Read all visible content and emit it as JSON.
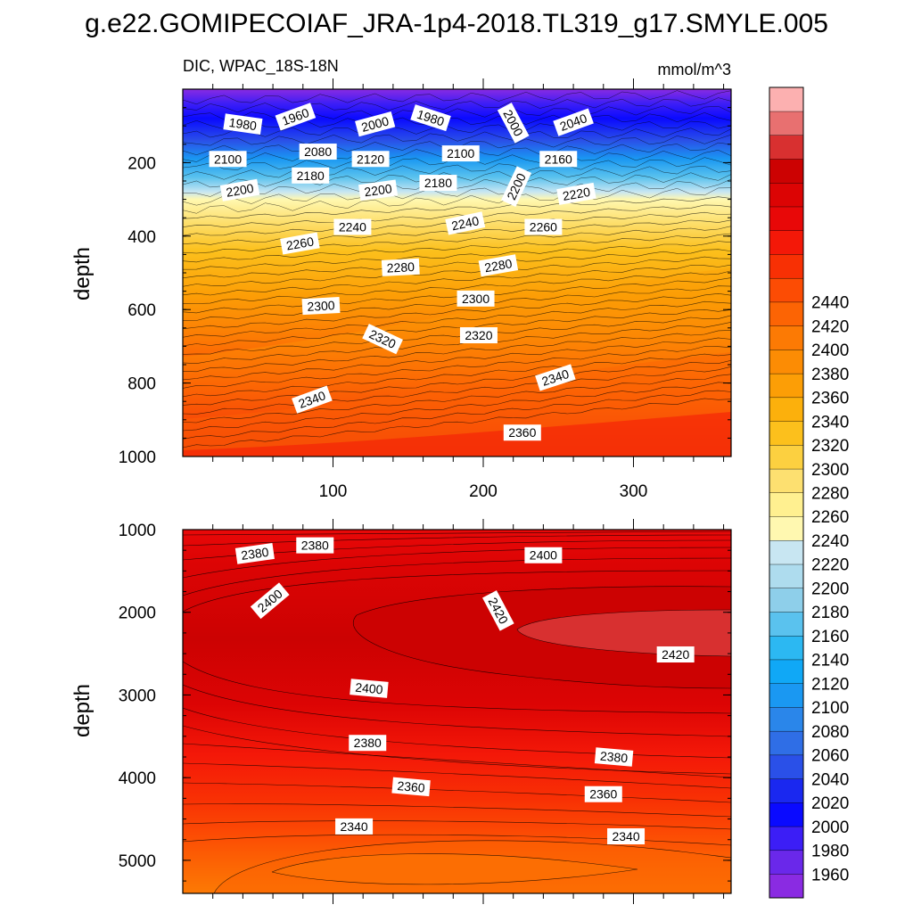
{
  "title": "g.e22.GOMIPECOIAF_JRA-1p4-2018.TL319_g17.SMYLE.005",
  "colorbar": {
    "levels": [
      1960,
      1980,
      2000,
      2020,
      2040,
      2060,
      2080,
      2100,
      2120,
      2140,
      2160,
      2180,
      2200,
      2220,
      2240,
      2260,
      2280,
      2300,
      2320,
      2340,
      2360,
      2380,
      2400,
      2420,
      2440
    ],
    "colors": [
      "#8a2be2",
      "#6a28ea",
      "#3c1ef6",
      "#0a0aff",
      "#1a28f0",
      "#2a50e8",
      "#2f6ee6",
      "#2a86ea",
      "#1a98f2",
      "#10a8f6",
      "#2cb8f2",
      "#5ac2ee",
      "#8ecfea",
      "#aedcee",
      "#c8e6f2",
      "#fff8b0",
      "#fff090",
      "#fde070",
      "#fcd040",
      "#fcc01c",
      "#fcb00c",
      "#fc9e06",
      "#fc8c04",
      "#fc7a04",
      "#fc6404",
      "#fc4c04",
      "#f83004",
      "#f41808",
      "#e80808",
      "#dc0404",
      "#cc0202",
      "#d83030",
      "#e87070",
      "#fcb0b0"
    ]
  },
  "chart_data": [
    {
      "type": "contour",
      "name": "upper-panel",
      "left_title": "DIC, WPAC_18S-18N",
      "right_title": "mmol/m^3",
      "xlabel": "",
      "ylabel": "depth",
      "xlim": [
        0,
        365
      ],
      "ylim": [
        1000,
        0
      ],
      "xticks": [
        100,
        200,
        300
      ],
      "yticks": [
        200,
        400,
        600,
        800,
        1000
      ],
      "contour_labels": [
        {
          "text": "1960",
          "x": 75,
          "y": 75,
          "angle": -20
        },
        {
          "text": "1980",
          "x": 40,
          "y": 95,
          "angle": 8
        },
        {
          "text": "2000",
          "x": 128,
          "y": 95,
          "angle": -15
        },
        {
          "text": "1980",
          "x": 165,
          "y": 78,
          "angle": 18
        },
        {
          "text": "2000",
          "x": 220,
          "y": 92,
          "angle": 62
        },
        {
          "text": "2040",
          "x": 260,
          "y": 90,
          "angle": -20
        },
        {
          "text": "2100",
          "x": 30,
          "y": 190,
          "angle": 0
        },
        {
          "text": "2080",
          "x": 90,
          "y": 170,
          "angle": 0
        },
        {
          "text": "2120",
          "x": 125,
          "y": 190,
          "angle": 0
        },
        {
          "text": "2100",
          "x": 185,
          "y": 175,
          "angle": 0
        },
        {
          "text": "2160",
          "x": 250,
          "y": 190,
          "angle": 0
        },
        {
          "text": "2180",
          "x": 85,
          "y": 235,
          "angle": 0
        },
        {
          "text": "2200",
          "x": 38,
          "y": 275,
          "angle": -10
        },
        {
          "text": "2200",
          "x": 130,
          "y": 275,
          "angle": -8
        },
        {
          "text": "2180",
          "x": 170,
          "y": 255,
          "angle": 0
        },
        {
          "text": "2200",
          "x": 222,
          "y": 265,
          "angle": -65
        },
        {
          "text": "2220",
          "x": 262,
          "y": 285,
          "angle": -10
        },
        {
          "text": "2240",
          "x": 113,
          "y": 375,
          "angle": 0
        },
        {
          "text": "2240",
          "x": 188,
          "y": 365,
          "angle": -12
        },
        {
          "text": "2260",
          "x": 240,
          "y": 375,
          "angle": 0
        },
        {
          "text": "2260",
          "x": 78,
          "y": 420,
          "angle": -10
        },
        {
          "text": "2280",
          "x": 145,
          "y": 485,
          "angle": -3
        },
        {
          "text": "2280",
          "x": 210,
          "y": 480,
          "angle": -10
        },
        {
          "text": "2300",
          "x": 92,
          "y": 590,
          "angle": -3
        },
        {
          "text": "2300",
          "x": 195,
          "y": 570,
          "angle": 0
        },
        {
          "text": "2320",
          "x": 133,
          "y": 680,
          "angle": 25
        },
        {
          "text": "2320",
          "x": 197,
          "y": 670,
          "angle": 0
        },
        {
          "text": "2340",
          "x": 86,
          "y": 845,
          "angle": -20
        },
        {
          "text": "2340",
          "x": 248,
          "y": 785,
          "angle": -18
        },
        {
          "text": "2360",
          "x": 226,
          "y": 935,
          "angle": 0
        }
      ]
    },
    {
      "type": "contour",
      "name": "lower-panel",
      "xlabel": "",
      "ylabel": "depth",
      "xlim": [
        0,
        365
      ],
      "ylim": [
        5400,
        1000
      ],
      "xticks": [
        100,
        200,
        300
      ],
      "yticks": [
        1000,
        2000,
        3000,
        4000,
        5000
      ],
      "contour_labels": [
        {
          "text": "2380",
          "x": 48,
          "y": 1290,
          "angle": -8
        },
        {
          "text": "2380",
          "x": 88,
          "y": 1190,
          "angle": 0
        },
        {
          "text": "2400",
          "x": 240,
          "y": 1310,
          "angle": 0
        },
        {
          "text": "2400",
          "x": 58,
          "y": 1860,
          "angle": -40
        },
        {
          "text": "2420",
          "x": 210,
          "y": 1980,
          "angle": 62
        },
        {
          "text": "2420",
          "x": 328,
          "y": 2510,
          "angle": 0
        },
        {
          "text": "2400",
          "x": 124,
          "y": 2920,
          "angle": 5
        },
        {
          "text": "2380",
          "x": 123,
          "y": 3580,
          "angle": 0
        },
        {
          "text": "2380",
          "x": 287,
          "y": 3750,
          "angle": 5
        },
        {
          "text": "2360",
          "x": 152,
          "y": 4110,
          "angle": 5
        },
        {
          "text": "2360",
          "x": 280,
          "y": 4200,
          "angle": 0
        },
        {
          "text": "2340",
          "x": 114,
          "y": 4590,
          "angle": 0
        },
        {
          "text": "2340",
          "x": 295,
          "y": 4710,
          "angle": 0
        }
      ]
    }
  ]
}
